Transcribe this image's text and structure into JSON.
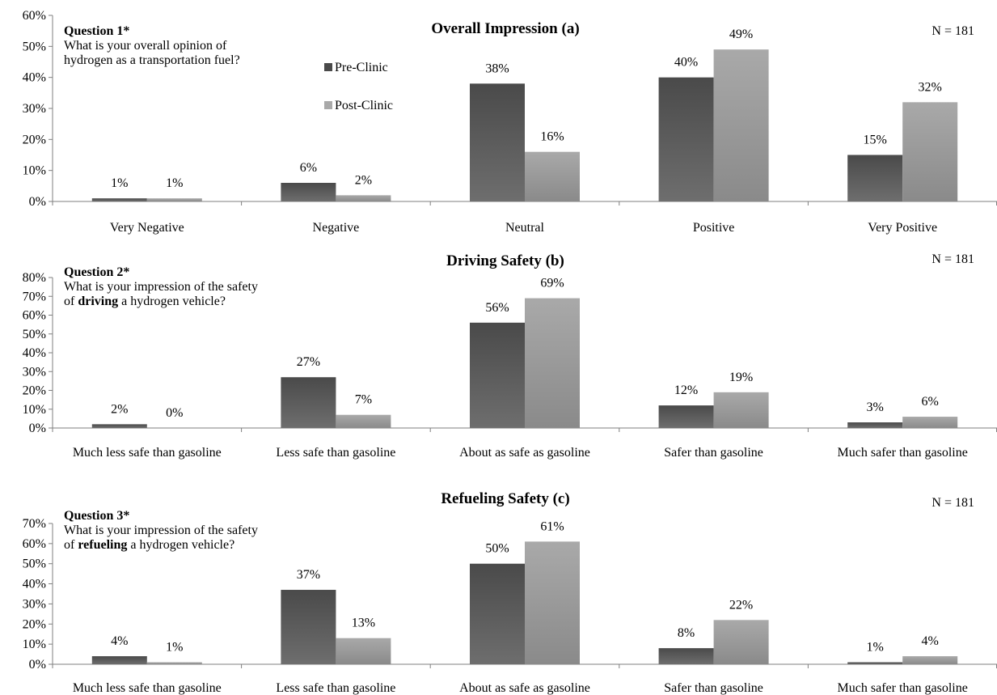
{
  "legend": {
    "pre": "Pre-Clinic",
    "post": "Post-Clinic"
  },
  "colors": {
    "pre_top": "#4a4a4a",
    "pre_bottom": "#6e6e6e",
    "post_top": "#a9a9a9",
    "post_bottom": "#8a8a8a",
    "axis": "#7f7f7f"
  },
  "chart_data": [
    {
      "type": "bar",
      "title": "Overall Impression (a)",
      "n_label": "N = 181",
      "question": {
        "head": "Question 1*",
        "lines": [
          [
            {
              "t": "What is your overall opinion of",
              "b": false
            }
          ],
          [
            {
              "t": "hydrogen as a transportation fuel?",
              "b": false
            }
          ]
        ]
      },
      "categories": [
        "Very Negative",
        "Negative",
        "Neutral",
        "Positive",
        "Very Positive"
      ],
      "series": [
        {
          "name": "Pre-Clinic",
          "values": [
            1,
            6,
            38,
            40,
            15
          ]
        },
        {
          "name": "Post-Clinic",
          "values": [
            1,
            2,
            16,
            49,
            32
          ]
        }
      ],
      "ylim": [
        0,
        60
      ],
      "yticks": [
        0,
        10,
        20,
        30,
        40,
        50,
        60
      ],
      "data_labels": [
        [
          "1%",
          "6%",
          "38%",
          "40%",
          "15%"
        ],
        [
          "1%",
          "2%",
          "16%",
          "49%",
          "32%"
        ]
      ],
      "show_legend": true,
      "legend_position": "upper-left"
    },
    {
      "type": "bar",
      "title": "Driving Safety (b)",
      "n_label": "N = 181",
      "question": {
        "head": "Question 2*",
        "lines": [
          [
            {
              "t": "What is your impression of the safety",
              "b": false
            }
          ],
          [
            {
              "t": "of ",
              "b": false
            },
            {
              "t": "driving",
              "b": true
            },
            {
              "t": " a hydrogen vehicle?",
              "b": false
            }
          ]
        ]
      },
      "categories": [
        "Much less safe than gasoline",
        "Less safe than gasoline",
        "About as safe as gasoline",
        "Safer than gasoline",
        "Much safer than gasoline"
      ],
      "series": [
        {
          "name": "Pre-Clinic",
          "values": [
            2,
            27,
            56,
            12,
            3
          ]
        },
        {
          "name": "Post-Clinic",
          "values": [
            0,
            7,
            69,
            19,
            6
          ]
        }
      ],
      "ylim": [
        0,
        80
      ],
      "yticks": [
        0,
        10,
        20,
        30,
        40,
        50,
        60,
        70,
        80
      ],
      "data_labels": [
        [
          "2%",
          "27%",
          "56%",
          "12%",
          "3%"
        ],
        [
          "0%",
          "7%",
          "69%",
          "19%",
          "6%"
        ]
      ],
      "show_legend": false
    },
    {
      "type": "bar",
      "title": "Refueling Safety (c)",
      "n_label": "N = 181",
      "question": {
        "head": "Question 3*",
        "lines": [
          [
            {
              "t": "What is your impression of the safety",
              "b": false
            }
          ],
          [
            {
              "t": "of ",
              "b": false
            },
            {
              "t": "refueling",
              "b": true
            },
            {
              "t": " a hydrogen vehicle?",
              "b": false
            }
          ]
        ]
      },
      "categories": [
        "Much less safe than gasoline",
        "Less safe than gasoline",
        "About as safe as gasoline",
        "Safer than gasoline",
        "Much safer than gasoline"
      ],
      "series": [
        {
          "name": "Pre-Clinic",
          "values": [
            4,
            37,
            50,
            8,
            1
          ]
        },
        {
          "name": "Post-Clinic",
          "values": [
            1,
            13,
            61,
            22,
            4
          ]
        }
      ],
      "ylim": [
        0,
        70
      ],
      "yticks": [
        0,
        10,
        20,
        30,
        40,
        50,
        60,
        70
      ],
      "data_labels": [
        [
          "4%",
          "37%",
          "50%",
          "8%",
          "1%"
        ],
        [
          "1%",
          "13%",
          "61%",
          "22%",
          "4%"
        ]
      ],
      "show_legend": false
    }
  ]
}
